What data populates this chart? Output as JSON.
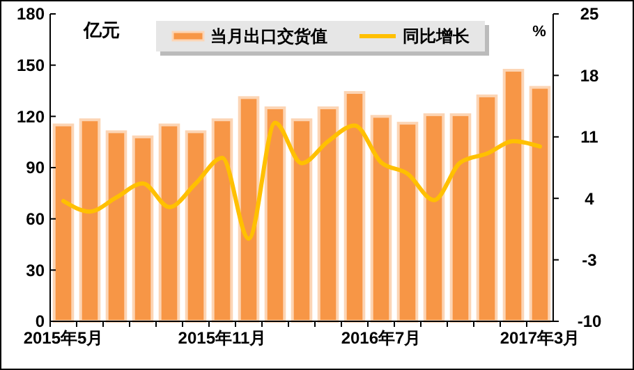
{
  "chart_data": {
    "type": "bar",
    "categories": [
      "2015年5月",
      null,
      null,
      null,
      null,
      null,
      "2015年11月",
      null,
      null,
      null,
      null,
      null,
      "2016年7月",
      null,
      null,
      null,
      null,
      null,
      "2017年3月"
    ],
    "series": [
      {
        "name": "当月出口交货值",
        "color": "#f79646",
        "values": [
          115,
          118,
          111,
          108,
          115,
          111,
          118,
          131,
          125,
          118,
          125,
          134,
          120,
          116,
          121,
          121,
          132,
          147,
          137
        ]
      },
      {
        "name": "同比增长",
        "type": "line",
        "axis": "y2",
        "color": "#ffc000",
        "values": [
          3.7,
          2.5,
          4.1,
          5.7,
          3.0,
          5.7,
          8.6,
          -0.6,
          12.6,
          8.0,
          10.5,
          12.3,
          8.1,
          6.8,
          3.8,
          8.1,
          9.1,
          10.5,
          9.9
        ]
      }
    ],
    "ylabel": "亿元",
    "y2label": "%",
    "ylim": [
      0,
      180
    ],
    "yticks": [
      0,
      30,
      60,
      90,
      120,
      150,
      180
    ],
    "y2lim": [
      -10,
      25
    ],
    "y2ticks": [
      -10,
      -3,
      4,
      11,
      18,
      25
    ],
    "legend": "top",
    "grid": false,
    "marker": "none",
    "line_style": "solid"
  }
}
